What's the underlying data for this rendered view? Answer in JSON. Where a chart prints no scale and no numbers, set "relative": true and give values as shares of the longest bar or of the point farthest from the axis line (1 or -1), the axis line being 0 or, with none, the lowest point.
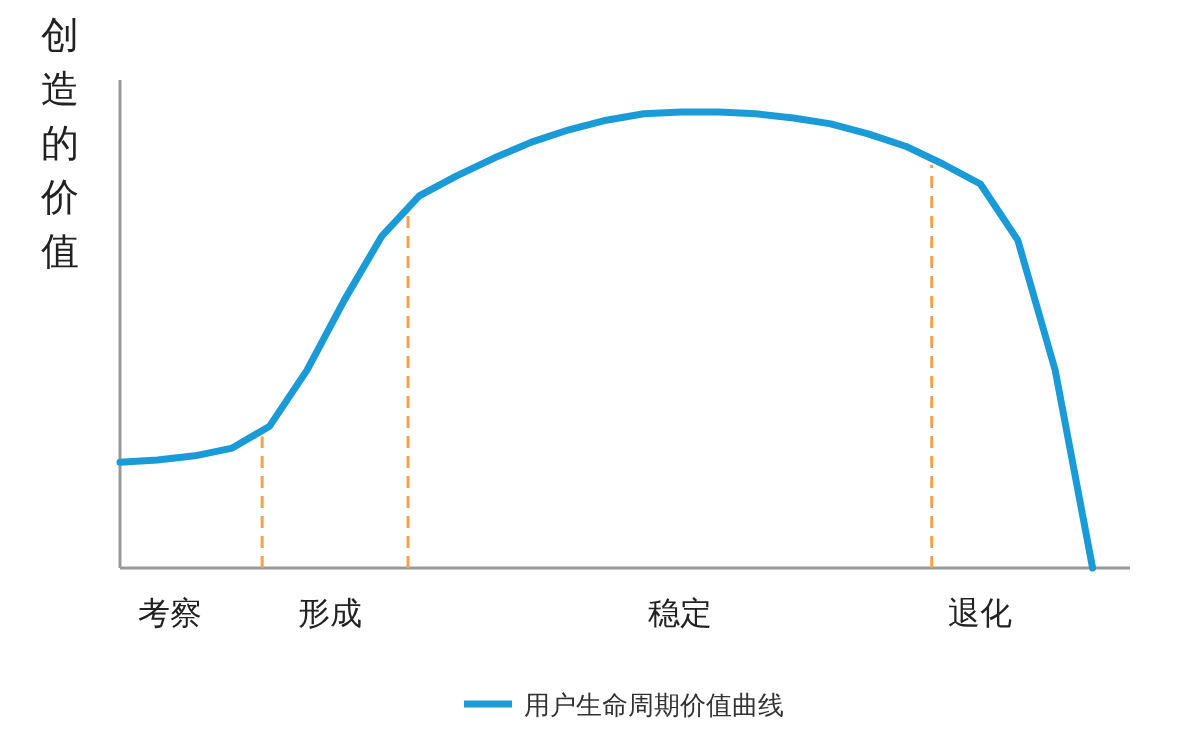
{
  "chart_data": {
    "type": "line",
    "relative": true,
    "ylabel": "创造的价值",
    "categories": [
      null,
      null,
      null,
      null,
      null,
      null,
      null,
      null,
      null,
      null,
      null,
      null,
      null,
      null,
      null,
      null,
      null,
      null,
      null,
      null,
      null,
      null,
      null,
      null,
      null,
      null,
      null,
      null
    ],
    "series": [
      {
        "name": "用户生命周期价值曲线",
        "color": "#1a9bd7",
        "values": [
          0.232,
          0.237,
          0.246,
          0.263,
          0.311,
          0.434,
          0.588,
          0.728,
          0.816,
          0.86,
          0.899,
          0.934,
          0.961,
          0.982,
          0.996,
          1,
          1,
          0.996,
          0.987,
          0.974,
          0.952,
          0.925,
          0.886,
          0.842,
          0.719,
          0.434,
          0,
          null
        ]
      }
    ],
    "annotations": [
      "考察",
      "形成",
      "稳定",
      "退化"
    ],
    "legend": "bottom",
    "grid": false,
    "marker": "none",
    "line_style": "solid"
  }
}
